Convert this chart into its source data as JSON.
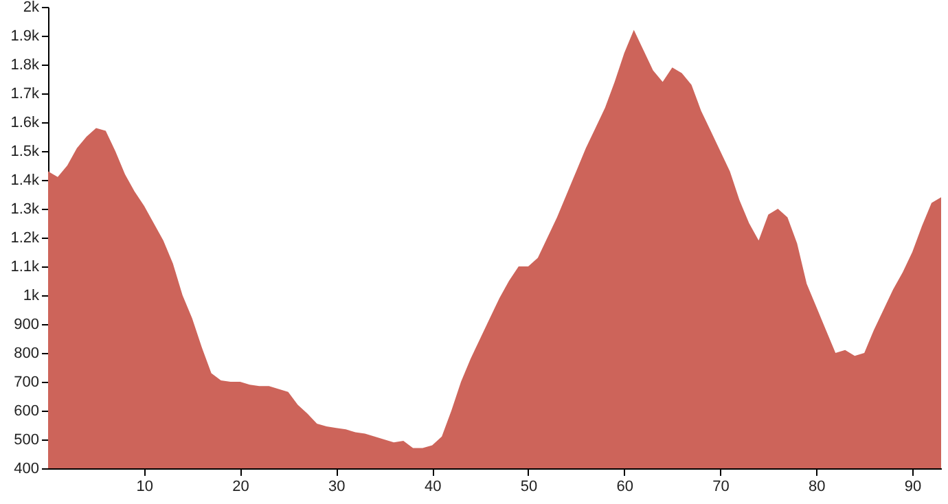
{
  "chart_data": {
    "type": "area",
    "color": "#cd645a",
    "grid": false,
    "x": [
      0,
      1,
      2,
      3,
      4,
      5,
      6,
      7,
      8,
      9,
      10,
      11,
      12,
      13,
      14,
      15,
      16,
      17,
      18,
      19,
      20,
      21,
      22,
      23,
      24,
      25,
      26,
      27,
      28,
      29,
      30,
      31,
      32,
      33,
      34,
      35,
      36,
      37,
      38,
      39,
      40,
      41,
      42,
      43,
      44,
      45,
      46,
      47,
      48,
      49,
      50,
      51,
      52,
      53,
      54,
      55,
      56,
      57,
      58,
      59,
      60,
      61,
      62,
      63,
      64,
      65,
      66,
      67,
      68,
      69,
      70,
      71,
      72,
      73,
      74,
      75,
      76,
      77,
      78,
      79,
      80,
      81,
      82,
      83,
      84,
      85,
      86,
      87,
      88,
      89,
      90,
      91,
      92,
      93
    ],
    "values": [
      1430,
      1410,
      1450,
      1510,
      1550,
      1580,
      1570,
      1500,
      1420,
      1360,
      1310,
      1250,
      1190,
      1110,
      1000,
      920,
      820,
      730,
      705,
      700,
      700,
      690,
      685,
      685,
      675,
      665,
      620,
      590,
      555,
      545,
      540,
      535,
      525,
      520,
      510,
      500,
      490,
      495,
      470,
      470,
      480,
      510,
      600,
      700,
      780,
      850,
      920,
      990,
      1050,
      1100,
      1100,
      1130,
      1200,
      1270,
      1350,
      1430,
      1510,
      1580,
      1650,
      1740,
      1840,
      1920,
      1850,
      1780,
      1740,
      1790,
      1770,
      1730,
      1640,
      1570,
      1500,
      1430,
      1330,
      1250,
      1190,
      1280,
      1300,
      1270,
      1180,
      1040,
      960,
      880,
      800,
      810,
      790,
      800,
      880,
      950,
      1020,
      1080,
      1150,
      1240,
      1320,
      1340
    ],
    "xlim": [
      0,
      93
    ],
    "xticks": [
      10,
      20,
      30,
      40,
      50,
      60,
      70,
      80,
      90
    ],
    "ylim": [
      400,
      2000
    ],
    "yticks": [
      400,
      500,
      600,
      700,
      800,
      900,
      {
        "value": 1000,
        "label": "1k"
      },
      {
        "value": 1100,
        "label": "1.1k"
      },
      {
        "value": 1200,
        "label": "1.2k"
      },
      {
        "value": 1300,
        "label": "1.3k"
      },
      {
        "value": 1400,
        "label": "1.4k"
      },
      {
        "value": 1500,
        "label": "1.5k"
      },
      {
        "value": 1600,
        "label": "1.6k"
      },
      {
        "value": 1700,
        "label": "1.7k"
      },
      {
        "value": 1800,
        "label": "1.8k"
      },
      {
        "value": 1900,
        "label": "1.9k"
      },
      {
        "value": 2000,
        "label": "2k"
      }
    ]
  }
}
